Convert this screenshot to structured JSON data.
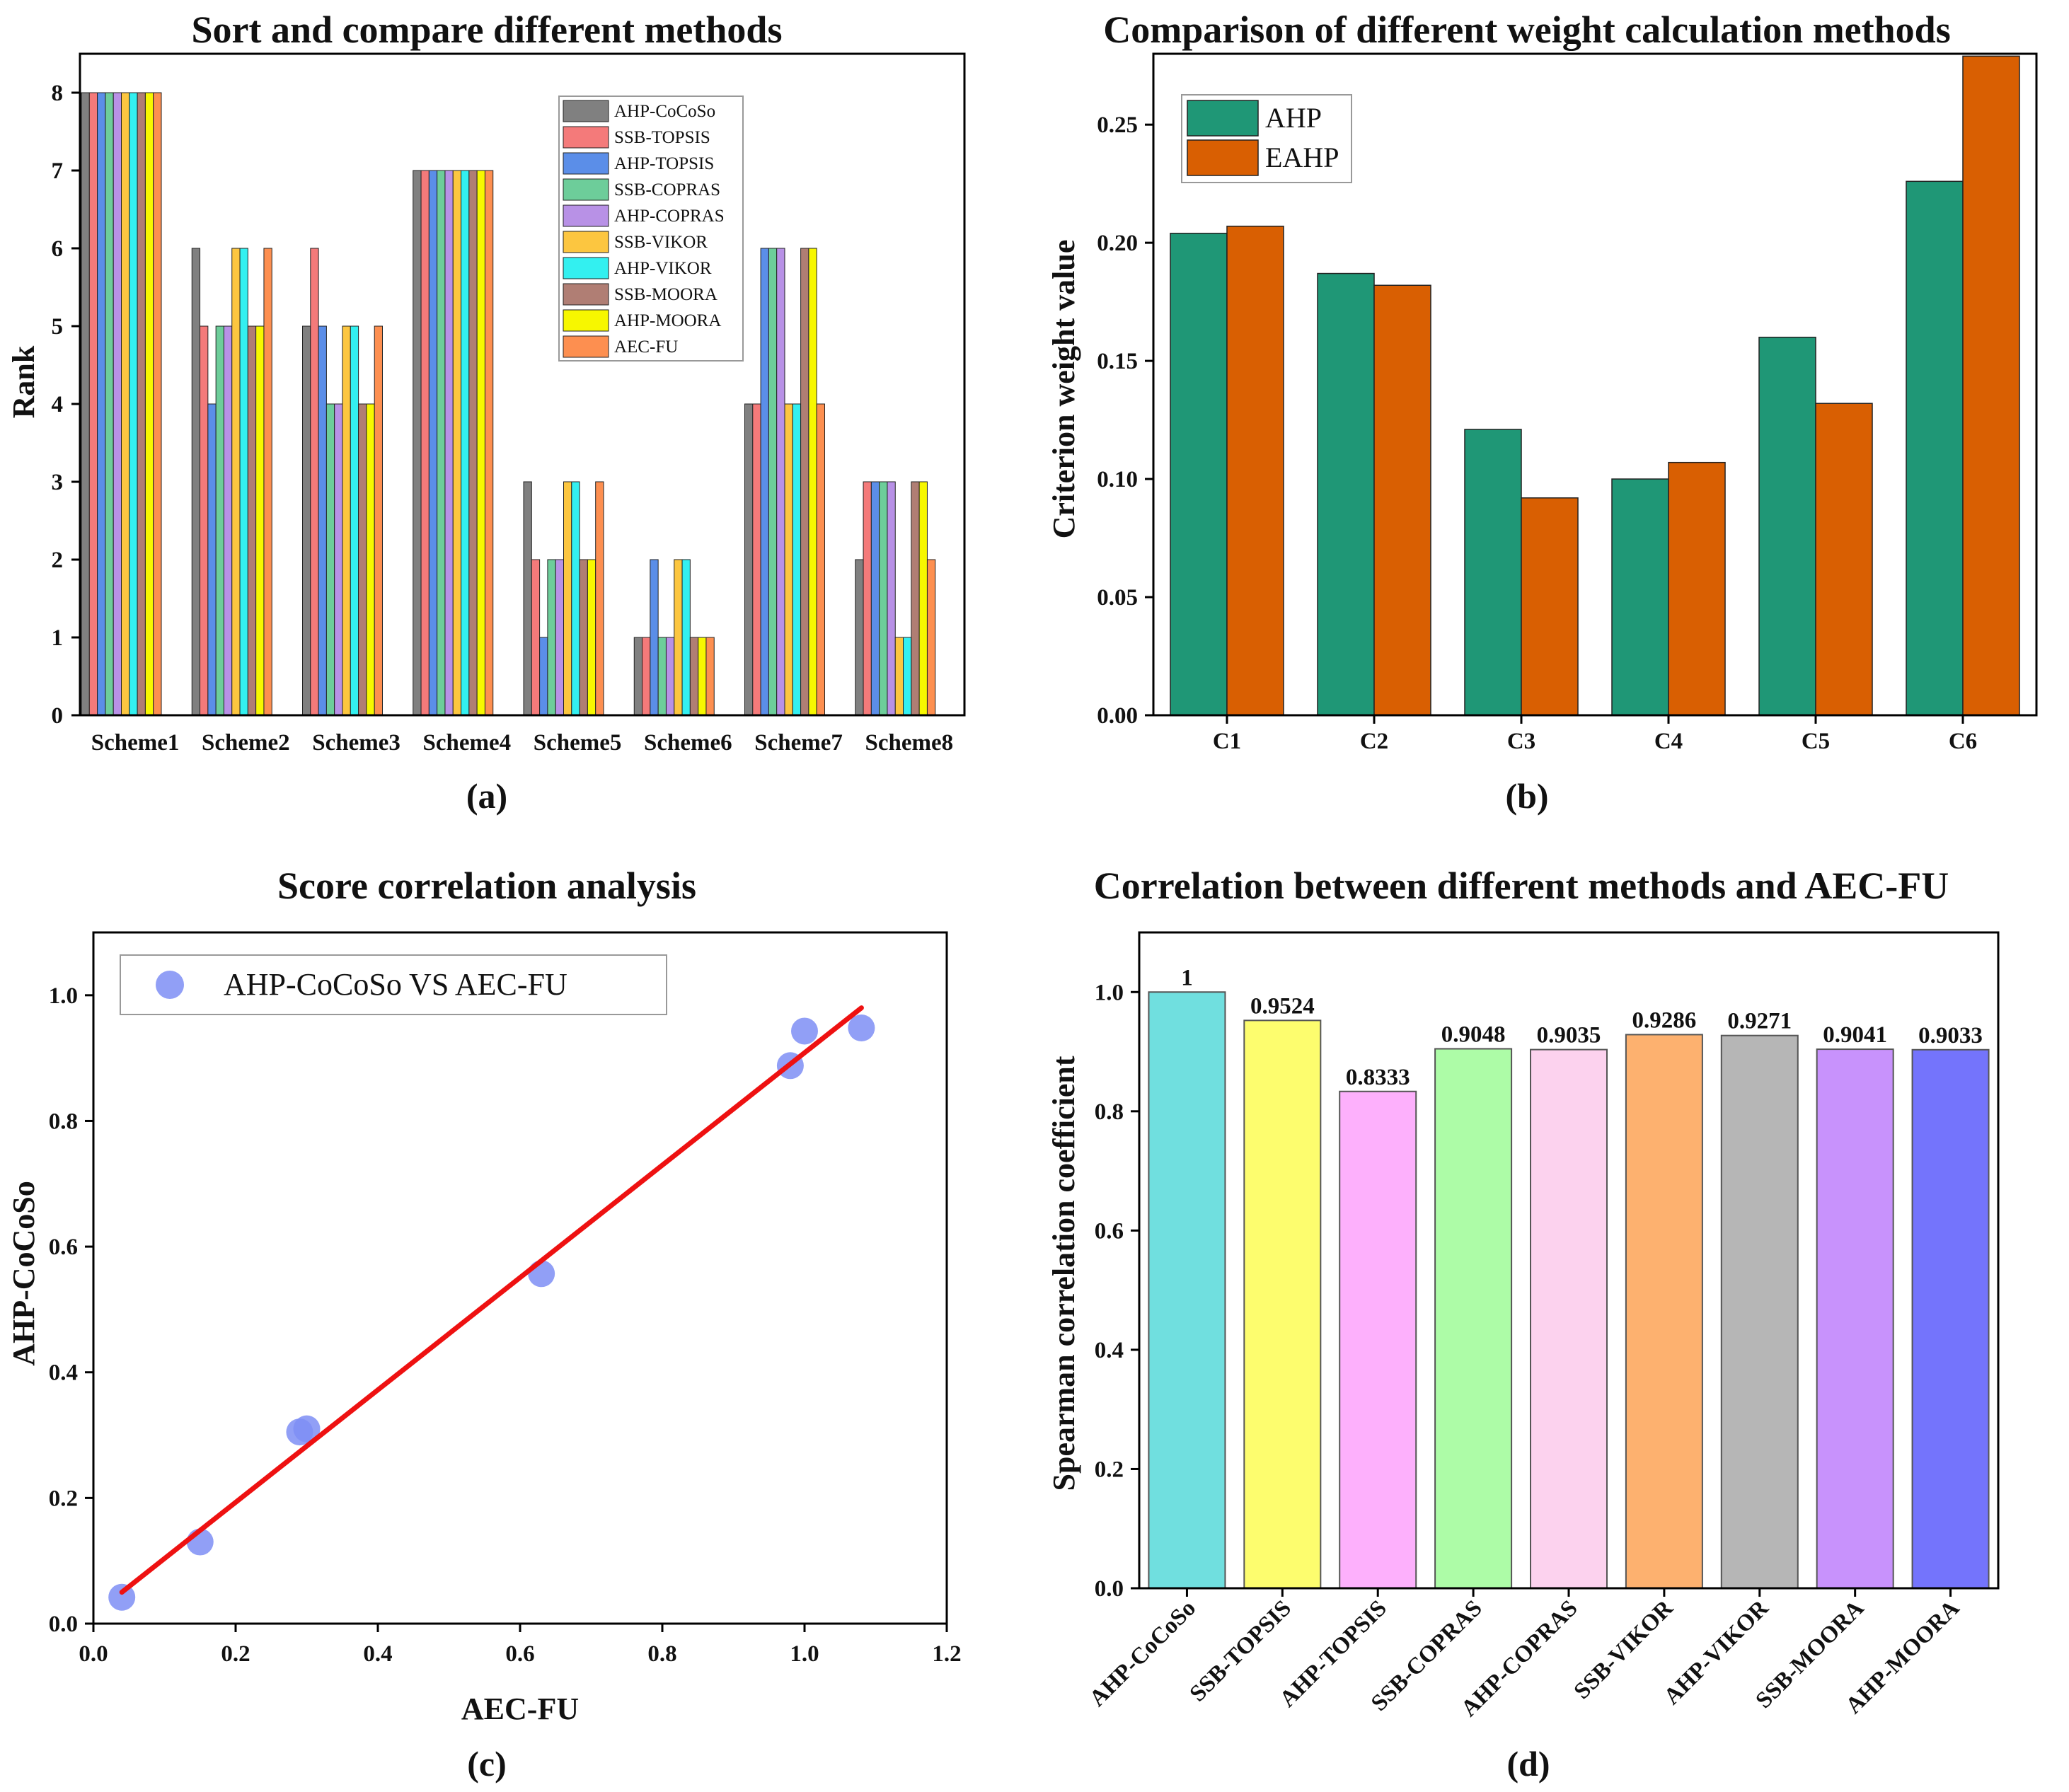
{
  "colors": {
    "methods": [
      "#808080",
      "#f47a7a",
      "#5b8ee8",
      "#6dcd9a",
      "#b891e6",
      "#fcc640",
      "#33f0f0",
      "#b07e74",
      "#f7f700",
      "#fd8f50"
    ],
    "weights": [
      "#1f9776",
      "#d95f02"
    ],
    "scatter": "#7e8ef5",
    "fit": "#ee1111",
    "spearman": [
      "#70dfdf",
      "#fdfd6e",
      "#fdb0fc",
      "#adfca7",
      "#fcd2ee",
      "#fdb16f",
      "#b6b6b6",
      "#c892fc",
      "#7474fc"
    ]
  },
  "chart_data": [
    {
      "panel": "(a)",
      "type": "bar",
      "title": "Sort and compare different methods",
      "xlabel": "",
      "ylabel": "Rank",
      "ylim": [
        0,
        8.5
      ],
      "yticks": [
        "0",
        "1",
        "2",
        "3",
        "4",
        "5",
        "6",
        "7",
        "8"
      ],
      "legend_position": "top-right",
      "categories": [
        "Scheme1",
        "Scheme2",
        "Scheme3",
        "Scheme4",
        "Scheme5",
        "Scheme6",
        "Scheme7",
        "Scheme8"
      ],
      "series": [
        {
          "name": "AHP-CoCoSo",
          "values": [
            8,
            6,
            5,
            7,
            3,
            1,
            4,
            2
          ]
        },
        {
          "name": "SSB-TOPSIS",
          "values": [
            8,
            5,
            6,
            7,
            2,
            1,
            4,
            3
          ]
        },
        {
          "name": "AHP-TOPSIS",
          "values": [
            8,
            4,
            5,
            7,
            1,
            2,
            6,
            3
          ]
        },
        {
          "name": "SSB-COPRAS",
          "values": [
            8,
            5,
            4,
            7,
            2,
            1,
            6,
            3
          ]
        },
        {
          "name": "AHP-COPRAS",
          "values": [
            8,
            5,
            4,
            7,
            2,
            1,
            6,
            3
          ]
        },
        {
          "name": "SSB-VIKOR",
          "values": [
            8,
            6,
            5,
            7,
            3,
            2,
            4,
            1
          ]
        },
        {
          "name": "AHP-VIKOR",
          "values": [
            8,
            6,
            5,
            7,
            3,
            2,
            4,
            1
          ]
        },
        {
          "name": "SSB-MOORA",
          "values": [
            8,
            5,
            4,
            7,
            2,
            1,
            6,
            3
          ]
        },
        {
          "name": "AHP-MOORA",
          "values": [
            8,
            5,
            4,
            7,
            2,
            1,
            6,
            3
          ]
        },
        {
          "name": "AEC-FU",
          "values": [
            8,
            6,
            5,
            7,
            3,
            1,
            4,
            2
          ]
        }
      ]
    },
    {
      "panel": "(b)",
      "type": "bar",
      "title": "Comparison of different weight calculation methods",
      "xlabel": "",
      "ylabel": "Criterion weight value",
      "ylim": [
        0,
        0.28
      ],
      "yticks": [
        "0.00",
        "0.05",
        "0.10",
        "0.15",
        "0.20",
        "0.25"
      ],
      "legend_position": "top-left",
      "categories": [
        "C1",
        "C2",
        "C3",
        "C4",
        "C5",
        "C6"
      ],
      "series": [
        {
          "name": "AHP",
          "values": [
            0.204,
            0.187,
            0.121,
            0.1,
            0.16,
            0.226
          ]
        },
        {
          "name": "EAHP",
          "values": [
            0.207,
            0.182,
            0.092,
            0.107,
            0.132,
            0.279
          ]
        }
      ]
    },
    {
      "panel": "(c)",
      "type": "scatter",
      "title": "Score correlation analysis",
      "xlabel": "AEC-FU",
      "ylabel": "AHP-CoCoSo",
      "xlim": [
        0,
        1.2
      ],
      "ylim": [
        0,
        1.1
      ],
      "xticks": [
        "0.0",
        "0.2",
        "0.4",
        "0.6",
        "0.8",
        "1.0",
        "1.2"
      ],
      "yticks": [
        "0.0",
        "0.2",
        "0.4",
        "0.6",
        "0.8",
        "1.0"
      ],
      "legend_position": "top-left",
      "series": [
        {
          "name": "AHP-CoCoSo VS AEC-FU",
          "x": [
            0.04,
            0.15,
            0.29,
            0.3,
            0.63,
            0.98,
            1.0,
            1.08
          ],
          "y": [
            0.042,
            0.13,
            0.305,
            0.31,
            0.557,
            0.888,
            0.943,
            0.948
          ]
        }
      ],
      "fit_line": {
        "x": [
          0.04,
          1.08
        ],
        "y": [
          0.05,
          0.98
        ]
      }
    },
    {
      "panel": "(d)",
      "type": "bar",
      "title": "Correlation between different methods and AEC-FU",
      "xlabel": "",
      "ylabel": "Spearman correlation coefficient",
      "ylim": [
        0,
        1.1
      ],
      "yticks": [
        "0.0",
        "0.2",
        "0.4",
        "0.6",
        "0.8",
        "1.0"
      ],
      "categories": [
        "AHP-CoCoSo",
        "SSB-TOPSIS",
        "AHP-TOPSIS",
        "SSB-COPRAS",
        "AHP-COPRAS",
        "SSB-VIKOR",
        "AHP-VIKOR",
        "SSB-MOORA",
        "AHP-MOORA"
      ],
      "values": [
        1,
        0.9524,
        0.8333,
        0.9048,
        0.9035,
        0.9286,
        0.9271,
        0.9041,
        0.9033
      ],
      "labels": [
        "1",
        "0.9524",
        "0.8333",
        "0.9048",
        "0.9035",
        "0.9286",
        "0.9271",
        "0.9041",
        "0.9033"
      ]
    }
  ]
}
